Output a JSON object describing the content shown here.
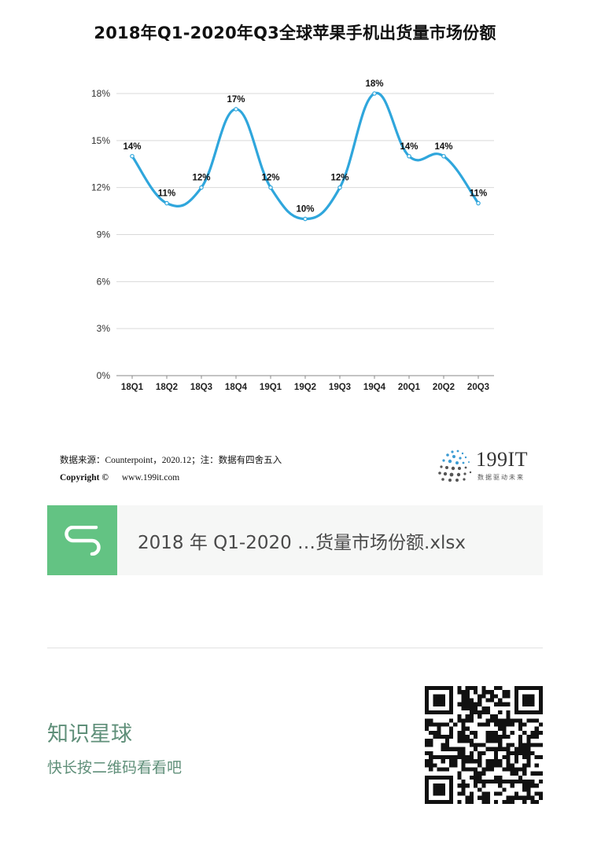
{
  "chart_data": {
    "type": "line",
    "title": "2018年Q1-2020年Q3全球苹果手机出货量市场份额",
    "categories": [
      "18Q1",
      "18Q2",
      "18Q3",
      "18Q4",
      "19Q1",
      "19Q2",
      "19Q3",
      "19Q4",
      "20Q1",
      "20Q2",
      "20Q3"
    ],
    "series": [
      {
        "values": [
          14,
          11,
          12,
          17,
          12,
          10,
          12,
          18,
          14,
          14,
          11
        ]
      }
    ],
    "data_labels": [
      "14%",
      "11%",
      "12%",
      "17%",
      "12%",
      "10%",
      "12%",
      "18%",
      "14%",
      "14%",
      "11%"
    ],
    "y_ticks": [
      0,
      3,
      6,
      9,
      12,
      15,
      18
    ],
    "y_tick_labels": [
      "0%",
      "3%",
      "6%",
      "9%",
      "12%",
      "15%",
      "18%"
    ],
    "ylim": [
      0,
      18
    ],
    "grid": true,
    "smooth": true,
    "line_color": "#2fa6dc"
  },
  "source": {
    "line1": "数据来源：Counterpoint，2020.12；注：数据有四舍五入",
    "copyright": "Copyright ©",
    "website": "www.199it.com"
  },
  "brand": {
    "name": "199IT",
    "tagline": "数据驱动未来"
  },
  "file": {
    "icon": "spreadsheet-s-icon",
    "name": "2018 年 Q1-2020 …货量市场份额.xlsx",
    "icon_color": "#63c383"
  },
  "planet": {
    "title": "知识星球",
    "subtitle": "快长按二维码看看吧",
    "text_color": "#5f8f79"
  }
}
